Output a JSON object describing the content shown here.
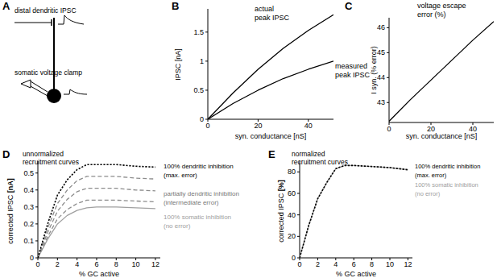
{
  "chart_data": [
    {
      "type": "diagram",
      "panel": "A",
      "labels": [
        "distal dendritic IPSC",
        "somatic voltage clamp"
      ]
    },
    {
      "type": "line",
      "panel": "B",
      "xlabel": "syn. conductance [nS]",
      "ylabel": "IPSC [nA]",
      "x": [
        0,
        10,
        20,
        30,
        40,
        50
      ],
      "series": [
        {
          "name": "actual peak IPSC",
          "color": "#000000",
          "line_style": "solid",
          "values": [
            0,
            0.45,
            0.86,
            1.22,
            1.53,
            1.8
          ]
        },
        {
          "name": "measured peak IPSC",
          "color": "#000000",
          "line_style": "solid",
          "values": [
            0,
            0.27,
            0.5,
            0.7,
            0.86,
            1.0
          ]
        }
      ],
      "xlim": [
        0,
        50
      ],
      "ylim": [
        0,
        1.9
      ],
      "xticks": [
        0,
        20,
        40
      ],
      "yticks": [
        0,
        0.5,
        1,
        1.5
      ]
    },
    {
      "type": "line",
      "panel": "C",
      "xlabel": "syn. conductance [nS]",
      "ylabel": "I syn. (% error)",
      "x": [
        0,
        10,
        20,
        30,
        40,
        50
      ],
      "series": [
        {
          "name": "voltage escape error (%)",
          "color": "#000000",
          "line_style": "solid",
          "values": [
            42.25,
            43.1,
            43.9,
            44.7,
            45.5,
            46.25
          ]
        }
      ],
      "xlim": [
        0,
        50
      ],
      "ylim": [
        42.2,
        46.4
      ],
      "xticks": [
        0,
        20,
        40
      ],
      "yticks": [
        43,
        44,
        45,
        46
      ]
    },
    {
      "type": "line",
      "panel": "D",
      "title": "unnormalized recruitment curves",
      "xlabel": "% GC active",
      "ylabel": "corrected IPSC [nA]",
      "x": [
        0,
        1,
        2,
        3,
        4,
        5,
        6,
        8,
        10,
        12
      ],
      "series": [
        {
          "name": "100% dendritic inhibition",
          "color": "#000000",
          "line_style": "dotted",
          "values": [
            0,
            0.2,
            0.37,
            0.46,
            0.52,
            0.55,
            0.55,
            0.55,
            0.54,
            0.535
          ]
        },
        {
          "color": "#8c8c8c",
          "line_style": "dashed",
          "values": [
            0,
            0.175,
            0.32,
            0.4,
            0.455,
            0.48,
            0.48,
            0.48,
            0.47,
            0.465
          ]
        },
        {
          "color": "#8c8c8c",
          "line_style": "dashed",
          "values": [
            0,
            0.15,
            0.275,
            0.345,
            0.39,
            0.41,
            0.41,
            0.41,
            0.4,
            0.395
          ]
        },
        {
          "color": "#8c8c8c",
          "line_style": "dashed",
          "values": [
            0,
            0.125,
            0.23,
            0.285,
            0.32,
            0.34,
            0.34,
            0.34,
            0.335,
            0.33
          ]
        },
        {
          "name": "100% somatic inhibition",
          "color": "#a0a0a0",
          "line_style": "solid",
          "values": [
            0,
            0.11,
            0.2,
            0.25,
            0.28,
            0.295,
            0.3,
            0.3,
            0.295,
            0.29
          ]
        }
      ],
      "annotations": [
        "(max. error)",
        "partially dendritic inhibition",
        "(intermediate error)",
        "(no error)"
      ],
      "xlim": [
        0,
        12.5
      ],
      "ylim": [
        0,
        0.57
      ],
      "xticks": [
        0,
        2,
        4,
        6,
        8,
        10,
        12
      ],
      "yticks": [
        0,
        0.1,
        0.2,
        0.3,
        0.4,
        0.5
      ]
    },
    {
      "type": "line",
      "panel": "E",
      "title": "normalized recruitment curves",
      "xlabel": "% GC active",
      "ylabel": "corrected IPSC [%]",
      "x": [
        0,
        1,
        2,
        3,
        4,
        5,
        6,
        8,
        10,
        12
      ],
      "series": [
        {
          "name": "100% dendritic inhibition",
          "color": "#000000",
          "line_style": "dotted",
          "values": [
            0,
            30,
            55,
            70,
            83,
            86,
            86,
            85,
            84,
            82
          ]
        },
        {
          "name": "100% somatic inhibition",
          "color": "#a0a0a0",
          "line_style": "solid",
          "values": [
            0,
            30,
            55,
            70,
            83,
            86,
            86,
            85,
            84,
            82
          ]
        }
      ],
      "annotations": [
        "(max. error)",
        "(no error)"
      ],
      "xlim": [
        0,
        12.5
      ],
      "ylim": [
        0,
        90
      ],
      "xticks": [
        0,
        2,
        4,
        6,
        8,
        10,
        12
      ],
      "yticks": [
        0,
        20,
        40,
        60,
        80
      ]
    }
  ]
}
